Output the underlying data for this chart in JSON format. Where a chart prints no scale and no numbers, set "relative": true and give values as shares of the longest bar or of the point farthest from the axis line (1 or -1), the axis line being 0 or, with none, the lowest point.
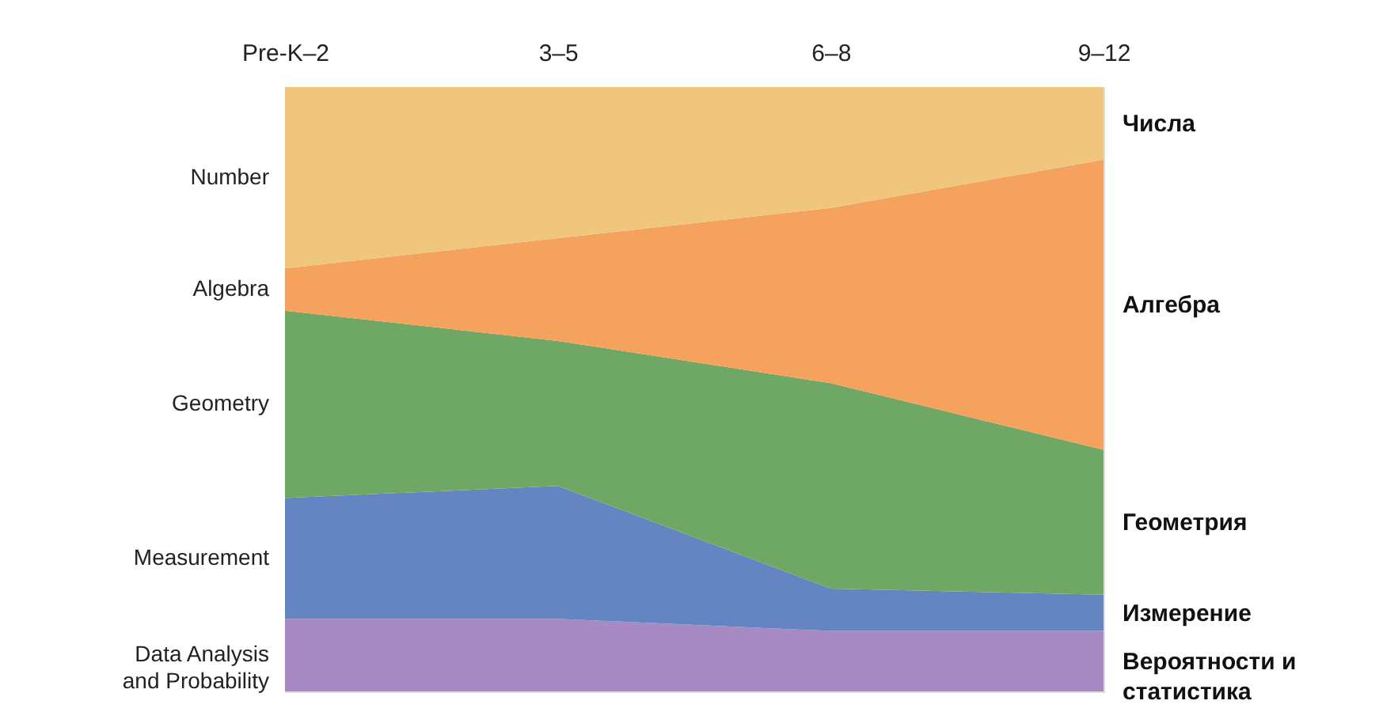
{
  "chart_data": {
    "type": "area",
    "relative": true,
    "stacked": true,
    "categories": [
      "Pre-K–2",
      "3–5",
      "6–8",
      "9–12"
    ],
    "series": [
      {
        "name": "Data Analysis and Probability",
        "color": "#a789c4",
        "values": [
          0.12,
          0.12,
          0.1,
          0.1
        ]
      },
      {
        "name": "Measurement",
        "color": "#6584c2",
        "values": [
          0.2,
          0.22,
          0.07,
          0.06
        ]
      },
      {
        "name": "Geometry",
        "color": "#6fa765",
        "values": [
          0.31,
          0.24,
          0.34,
          0.24
        ]
      },
      {
        "name": "Algebra",
        "color": "#f5a25e",
        "values": [
          0.07,
          0.17,
          0.29,
          0.48
        ]
      },
      {
        "name": "Number",
        "color": "#f0c67c",
        "values": [
          0.3,
          0.25,
          0.2,
          0.12
        ]
      }
    ],
    "annotations": [
      "Вероятности и статистика",
      "Измерение",
      "Геометрия",
      "Алгебра",
      "Числа"
    ]
  }
}
